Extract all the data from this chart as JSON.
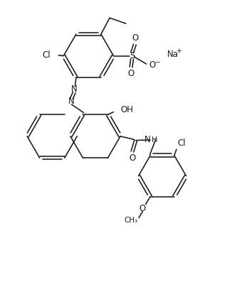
{
  "bg_color": "#ffffff",
  "line_color": "#1a1a1a",
  "figsize": [
    3.19,
    4.25
  ],
  "dpi": 100,
  "lw": 1.15,
  "xlim": [
    0,
    10
  ],
  "ylim": [
    0,
    13.3
  ]
}
